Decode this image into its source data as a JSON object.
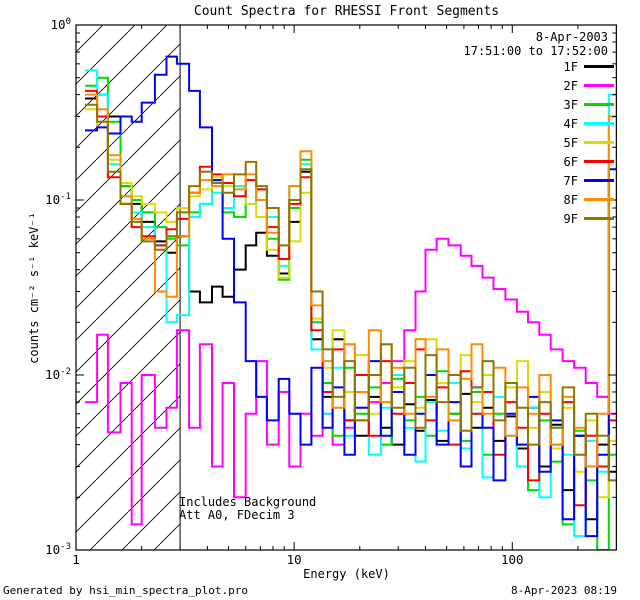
{
  "title": "Count Spectra for RHESSI Front Segments",
  "header": {
    "date": "8-Apr-2003",
    "time_range": "17:51:00 to 17:52:00"
  },
  "annotations": {
    "line1": "Includes Background",
    "line2": "Att A0, FDecim 3"
  },
  "footer": {
    "left": "Generated by hsi_min_spectra_plot.pro",
    "right": "8-Apr-2023 08:19"
  },
  "chart_data": {
    "type": "line",
    "style": "histogram-steps",
    "title": "Count Spectra for RHESSI Front Segments",
    "xlabel": "Energy (keV)",
    "ylabel": "counts cm⁻² s⁻¹ keV⁻¹",
    "xscale": "log",
    "yscale": "log",
    "xlim": [
      1,
      300
    ],
    "ylim": [
      0.001,
      1
    ],
    "grid": false,
    "legend_position": "upper-right",
    "hatched_region_kev": [
      1,
      3
    ],
    "xticks": [
      {
        "value": 1,
        "label": "1"
      },
      {
        "value": 10,
        "label": "10"
      },
      {
        "value": 100,
        "label": "100"
      }
    ],
    "yticks": [
      {
        "value": 1,
        "label": "10^0"
      },
      {
        "value": 0.1,
        "label": "10^-1"
      },
      {
        "value": 0.01,
        "label": "10^-2"
      },
      {
        "value": 0.001,
        "label": "10^-3"
      }
    ],
    "energies_kev": [
      1.1,
      1.25,
      1.4,
      1.6,
      1.8,
      2.0,
      2.3,
      2.6,
      2.9,
      3.3,
      3.7,
      4.2,
      4.7,
      5.3,
      6.0,
      6.7,
      7.5,
      8.5,
      9.5,
      10.7,
      12,
      13.5,
      15,
      17,
      19,
      22,
      25,
      28,
      32,
      36,
      40,
      45,
      51,
      58,
      65,
      73,
      82,
      93,
      105,
      118,
      133,
      150,
      170,
      192,
      217,
      245,
      277,
      300
    ],
    "series": [
      {
        "name": "1F",
        "color": "#000000",
        "values": [
          0.38,
          0.4,
          0.3,
          0.12,
          0.095,
          0.075,
          0.058,
          0.05,
          0.062,
          0.03,
          0.026,
          0.032,
          0.028,
          0.04,
          0.055,
          0.065,
          0.048,
          0.038,
          0.075,
          0.145,
          0.016,
          0.0075,
          0.016,
          0.0055,
          0.0045,
          0.0075,
          0.005,
          0.004,
          0.0068,
          0.0048,
          0.0072,
          0.0042,
          0.006,
          0.0078,
          0.005,
          0.0065,
          0.0042,
          0.0058,
          0.0038,
          0.0065,
          0.003,
          0.0052,
          0.0022,
          0.0045,
          0.0015,
          0.004,
          0.0028,
          0.0028
        ]
      },
      {
        "name": "2F",
        "color": "#FF00FF",
        "values": [
          0.007,
          0.017,
          0.0047,
          0.009,
          0.0014,
          0.01,
          0.005,
          0.0065,
          0.018,
          0.005,
          0.015,
          0.003,
          0.009,
          0.002,
          0.006,
          0.012,
          0.004,
          0.008,
          0.003,
          0.006,
          0.0045,
          0.006,
          0.004,
          0.005,
          0.0055,
          0.007,
          0.009,
          0.012,
          0.018,
          0.03,
          0.052,
          0.06,
          0.055,
          0.048,
          0.042,
          0.036,
          0.031,
          0.027,
          0.023,
          0.02,
          0.017,
          0.014,
          0.012,
          0.011,
          0.009,
          0.0075,
          0.006,
          0.006
        ]
      },
      {
        "name": "3F",
        "color": "#00DC00",
        "values": [
          0.45,
          0.5,
          0.28,
          0.12,
          0.1,
          0.085,
          0.07,
          0.06,
          0.055,
          0.085,
          0.095,
          0.13,
          0.085,
          0.08,
          0.13,
          0.1,
          0.06,
          0.035,
          0.09,
          0.17,
          0.02,
          0.009,
          0.0045,
          0.011,
          0.006,
          0.0085,
          0.004,
          0.0095,
          0.0055,
          0.0075,
          0.0045,
          0.0105,
          0.006,
          0.0042,
          0.008,
          0.0035,
          0.006,
          0.009,
          0.004,
          0.0022,
          0.0055,
          0.0032,
          0.0014,
          0.0048,
          0.0025,
          0.001,
          0.0035,
          0.0035
        ]
      },
      {
        "name": "4F",
        "color": "#00FFFF",
        "values": [
          0.55,
          0.4,
          0.16,
          0.105,
          0.085,
          0.07,
          0.055,
          0.02,
          0.022,
          0.08,
          0.095,
          0.11,
          0.09,
          0.12,
          0.095,
          0.115,
          0.08,
          0.042,
          0.12,
          0.16,
          0.014,
          0.006,
          0.011,
          0.0045,
          0.008,
          0.0035,
          0.0065,
          0.01,
          0.005,
          0.0032,
          0.007,
          0.0048,
          0.009,
          0.0038,
          0.006,
          0.0026,
          0.0075,
          0.0045,
          0.003,
          0.0065,
          0.002,
          0.005,
          0.0035,
          0.0012,
          0.0042,
          0.0028,
          0.4,
          0.4
        ]
      },
      {
        "name": "5F",
        "color": "#DCDC00",
        "values": [
          0.33,
          0.26,
          0.17,
          0.125,
          0.105,
          0.095,
          0.085,
          0.075,
          0.09,
          0.105,
          0.115,
          0.135,
          0.12,
          0.105,
          0.095,
          0.08,
          0.052,
          0.036,
          0.058,
          0.11,
          0.021,
          0.011,
          0.018,
          0.008,
          0.013,
          0.006,
          0.015,
          0.0085,
          0.012,
          0.0065,
          0.016,
          0.009,
          0.0055,
          0.013,
          0.007,
          0.01,
          0.0055,
          0.0085,
          0.012,
          0.005,
          0.008,
          0.0038,
          0.0065,
          0.0028,
          0.0055,
          0.002,
          0.0042,
          0.0042
        ]
      },
      {
        "name": "6F",
        "color": "#FF0000",
        "values": [
          0.42,
          0.3,
          0.135,
          0.095,
          0.07,
          0.062,
          0.055,
          0.068,
          0.078,
          0.11,
          0.155,
          0.14,
          0.125,
          0.105,
          0.13,
          0.115,
          0.07,
          0.046,
          0.095,
          0.135,
          0.018,
          0.008,
          0.014,
          0.0055,
          0.01,
          0.0045,
          0.012,
          0.006,
          0.009,
          0.014,
          0.0055,
          0.0085,
          0.004,
          0.0105,
          0.006,
          0.008,
          0.0035,
          0.007,
          0.005,
          0.0025,
          0.006,
          0.004,
          0.007,
          0.0018,
          0.0045,
          0.003,
          0.0055,
          0.0055
        ]
      },
      {
        "name": "7F",
        "color": "#0000FF",
        "values": [
          0.25,
          0.26,
          0.24,
          0.3,
          0.28,
          0.36,
          0.52,
          0.66,
          0.6,
          0.42,
          0.26,
          0.13,
          0.06,
          0.026,
          0.012,
          0.0075,
          0.0055,
          0.0095,
          0.006,
          0.004,
          0.011,
          0.005,
          0.0085,
          0.0035,
          0.0065,
          0.012,
          0.0045,
          0.008,
          0.0035,
          0.006,
          0.01,
          0.004,
          0.007,
          0.003,
          0.0085,
          0.005,
          0.0025,
          0.006,
          0.004,
          0.0075,
          0.0028,
          0.0055,
          0.0015,
          0.0045,
          0.0012,
          0.0035,
          0.15,
          0.15
        ]
      },
      {
        "name": "8F",
        "color": "#FF8C00",
        "values": [
          0.4,
          0.33,
          0.18,
          0.105,
          0.078,
          0.06,
          0.03,
          0.028,
          0.062,
          0.11,
          0.13,
          0.12,
          0.14,
          0.115,
          0.14,
          0.1,
          0.065,
          0.055,
          0.12,
          0.19,
          0.025,
          0.012,
          0.0065,
          0.015,
          0.008,
          0.018,
          0.007,
          0.011,
          0.006,
          0.016,
          0.0075,
          0.014,
          0.0055,
          0.0095,
          0.015,
          0.006,
          0.011,
          0.0045,
          0.0085,
          0.006,
          0.01,
          0.004,
          0.0075,
          0.005,
          0.003,
          0.006,
          0.3,
          0.3
        ]
      },
      {
        "name": "9F",
        "color": "#8C7800",
        "values": [
          0.35,
          0.28,
          0.145,
          0.095,
          0.075,
          0.058,
          0.052,
          0.062,
          0.085,
          0.12,
          0.145,
          0.125,
          0.11,
          0.14,
          0.165,
          0.12,
          0.09,
          0.055,
          0.1,
          0.15,
          0.03,
          0.014,
          0.0075,
          0.012,
          0.0055,
          0.01,
          0.015,
          0.0065,
          0.011,
          0.005,
          0.013,
          0.007,
          0.01,
          0.0048,
          0.0085,
          0.012,
          0.0055,
          0.009,
          0.0065,
          0.004,
          0.007,
          0.005,
          0.0085,
          0.0035,
          0.006,
          0.0045,
          0.0025,
          0.0025
        ]
      }
    ]
  }
}
